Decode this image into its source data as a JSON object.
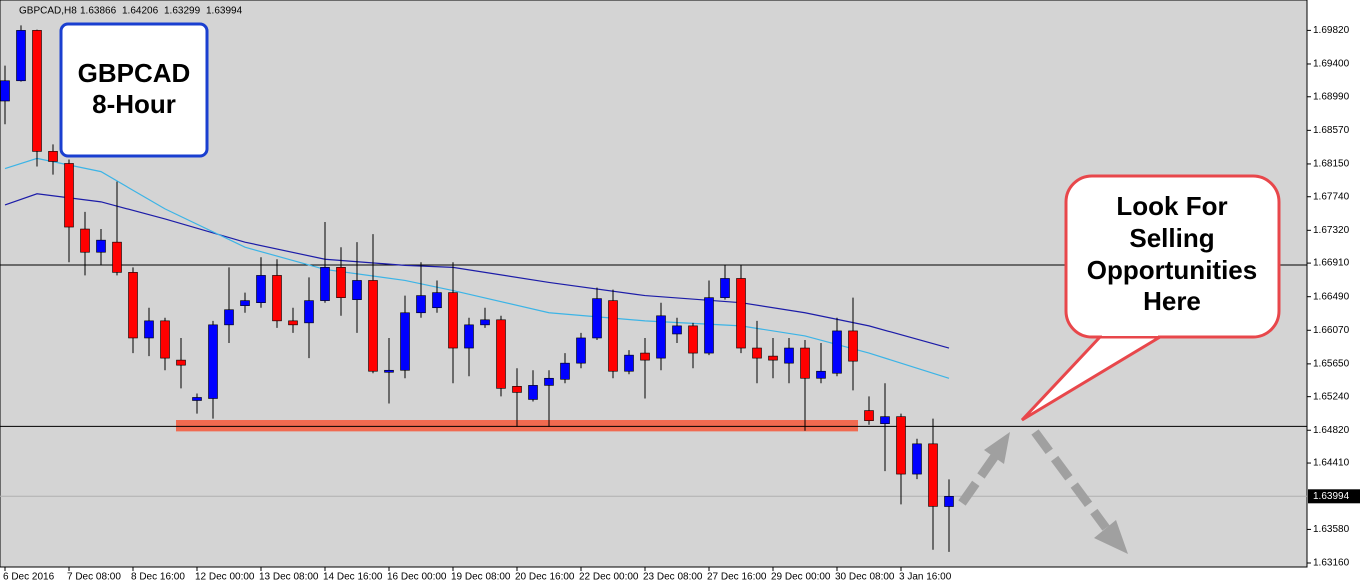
{
  "chart_data": {
    "type": "candlestick",
    "title": "GBPCAD,H8",
    "categories": [
      "6 Dec 2016",
      null,
      null,
      null,
      "7 Dec 08:00",
      null,
      null,
      null,
      "8 Dec 16:00",
      null,
      null,
      null,
      "12 Dec 00:00",
      null,
      null,
      null,
      "13 Dec 08:00",
      null,
      null,
      null,
      "14 Dec 16:00",
      null,
      null,
      null,
      "16 Dec 00:00",
      null,
      null,
      null,
      "19 Dec 08:00",
      null,
      null,
      null,
      "20 Dec 16:00",
      null,
      null,
      null,
      "22 Dec 00:00",
      null,
      null,
      null,
      "23 Dec 08:00",
      null,
      null,
      null,
      "27 Dec 16:00",
      null,
      null,
      null,
      "29 Dec 00:00",
      null,
      null,
      null,
      "30 Dec 08:00",
      null,
      null,
      null,
      "3 Jan 16:00",
      null,
      null,
      null
    ],
    "open": [
      1.68937,
      1.6919,
      1.6982,
      1.68307,
      1.68156,
      1.67336,
      1.67046,
      1.67172,
      1.66794,
      1.65974,
      1.66188,
      1.65697,
      1.65192,
      1.65217,
      1.66138,
      1.66378,
      1.66415,
      1.66756,
      1.66188,
      1.66163,
      1.66441,
      1.66857,
      1.66453,
      1.66693,
      1.65545,
      1.6557,
      1.66289,
      1.66352,
      1.66541,
      1.65848,
      1.66138,
      1.66201,
      1.65369,
      1.65205,
      1.65381,
      1.65457,
      1.65659,
      1.65974,
      1.66441,
      1.65558,
      1.65785,
      1.65722,
      1.66024,
      1.66125,
      1.65785,
      1.66478,
      1.66718,
      1.65848,
      1.65747,
      1.65659,
      1.65848,
      1.6547,
      1.65533,
      1.66062,
      1.65066,
      1.64902,
      1.6499,
      1.64272,
      1.6465,
      1.63866
    ],
    "high": [
      1.69379,
      1.69883,
      1.6983,
      1.68395,
      1.68206,
      1.6755,
      1.67336,
      1.67929,
      1.66857,
      1.66352,
      1.66226,
      1.65974,
      1.6528,
      1.66188,
      1.66857,
      1.66541,
      1.66983,
      1.66958,
      1.66352,
      1.66731,
      1.67424,
      1.67109,
      1.67172,
      1.67273,
      1.65974,
      1.66504,
      1.6692,
      1.66693,
      1.6692,
      1.66226,
      1.66352,
      1.66251,
      1.65596,
      1.6557,
      1.6557,
      1.65785,
      1.66037,
      1.66604,
      1.66579,
      1.65822,
      1.65974,
      1.66415,
      1.66226,
      1.66163,
      1.66693,
      1.66882,
      1.66882,
      1.66188,
      1.65974,
      1.65974,
      1.65949,
      1.65911,
      1.66226,
      1.66478,
      1.65243,
      1.65407,
      1.65028,
      1.64713,
      1.64965,
      1.64206
    ],
    "low": [
      1.68647,
      1.6918,
      1.68118,
      1.68017,
      1.6692,
      1.66756,
      1.66882,
      1.66756,
      1.65785,
      1.65747,
      1.6557,
      1.65344,
      1.65028,
      1.64965,
      1.65911,
      1.66289,
      1.66352,
      1.661,
      1.66037,
      1.65722,
      1.66415,
      1.66251,
      1.66037,
      1.65533,
      1.65154,
      1.6547,
      1.66226,
      1.66289,
      1.65407,
      1.65495,
      1.661,
      1.65243,
      1.64864,
      1.6518,
      1.64864,
      1.65407,
      1.65596,
      1.65949,
      1.6547,
      1.6552,
      1.65217,
      1.6557,
      1.65911,
      1.65596,
      1.65759,
      1.66453,
      1.65785,
      1.65407,
      1.6547,
      1.65407,
      1.64814,
      1.65407,
      1.65495,
      1.65318,
      1.64889,
      1.64309,
      1.63893,
      1.64209,
      1.63326,
      1.63299
    ],
    "close": [
      1.6919,
      1.6982,
      1.68307,
      1.68181,
      1.67361,
      1.67046,
      1.67197,
      1.66794,
      1.65974,
      1.66188,
      1.65722,
      1.65634,
      1.6523,
      1.66138,
      1.66327,
      1.66441,
      1.66756,
      1.66188,
      1.66138,
      1.66441,
      1.66857,
      1.66478,
      1.66693,
      1.65558,
      1.6557,
      1.66289,
      1.66504,
      1.66541,
      1.65848,
      1.66138,
      1.66201,
      1.65344,
      1.65293,
      1.65381,
      1.6547,
      1.65659,
      1.65974,
      1.66466,
      1.65558,
      1.65759,
      1.65697,
      1.66251,
      1.66125,
      1.65785,
      1.66478,
      1.66718,
      1.65848,
      1.65722,
      1.65697,
      1.65848,
      1.6547,
      1.65558,
      1.66062,
      1.65684,
      1.6494,
      1.6499,
      1.64272,
      1.6465,
      1.63868,
      1.63994
    ],
    "up_color": "#0000ff",
    "down_color": "#ff0000",
    "moving_averages": [
      {
        "color": "#1c1ca8",
        "x": [
          0,
          2,
          6,
          10,
          15,
          20,
          25,
          28,
          34,
          40,
          46,
          50,
          54,
          59
        ],
        "values": [
          1.67638,
          1.67777,
          1.67676,
          1.67462,
          1.67172,
          1.66958,
          1.66882,
          1.66857,
          1.66668,
          1.66504,
          1.66415,
          1.66289,
          1.66125,
          1.65848
        ]
      },
      {
        "color": "#3cb4e6",
        "x": [
          0,
          2,
          6,
          10,
          15,
          20,
          25,
          28,
          34,
          40,
          46,
          50,
          54,
          59
        ],
        "values": [
          1.68092,
          1.68219,
          1.68054,
          1.67588,
          1.67109,
          1.66831,
          1.66693,
          1.66567,
          1.66289,
          1.66188,
          1.66125,
          1.65999,
          1.65785,
          1.6547
        ]
      }
    ],
    "levels": [
      1.66886,
      1.64869
    ],
    "zone": {
      "start": 11,
      "end": 53,
      "high": 1.64948,
      "low": 1.64806,
      "color": "#f06a50"
    },
    "ylim": [
      1.6311,
      1.702
    ],
    "yticks": [
      {
        "value": 1.6982,
        "label": "1.69820"
      },
      {
        "value": 1.694,
        "label": "1.69400"
      },
      {
        "value": 1.6899,
        "label": "1.68990"
      },
      {
        "value": 1.6857,
        "label": "1.68570"
      },
      {
        "value": 1.6815,
        "label": "1.68150"
      },
      {
        "value": 1.6774,
        "label": "1.67740"
      },
      {
        "value": 1.6732,
        "label": "1.67320"
      },
      {
        "value": 1.6691,
        "label": "1.66910"
      },
      {
        "value": 1.6649,
        "label": "1.66490"
      },
      {
        "value": 1.6607,
        "label": "1.66070"
      },
      {
        "value": 1.6565,
        "label": "1.65650"
      },
      {
        "value": 1.6524,
        "label": "1.65240"
      },
      {
        "value": 1.6482,
        "label": "1.64820"
      },
      {
        "value": 1.6441,
        "label": "1.64410"
      },
      {
        "value": 1.6358,
        "label": "1.63580"
      },
      {
        "value": 1.6316,
        "label": "1.63160"
      }
    ],
    "pair_box": [
      "GBPCAD",
      "8-Hour"
    ],
    "callout": [
      "Look For",
      "Selling",
      "Opportunities",
      "Here"
    ]
  }
}
